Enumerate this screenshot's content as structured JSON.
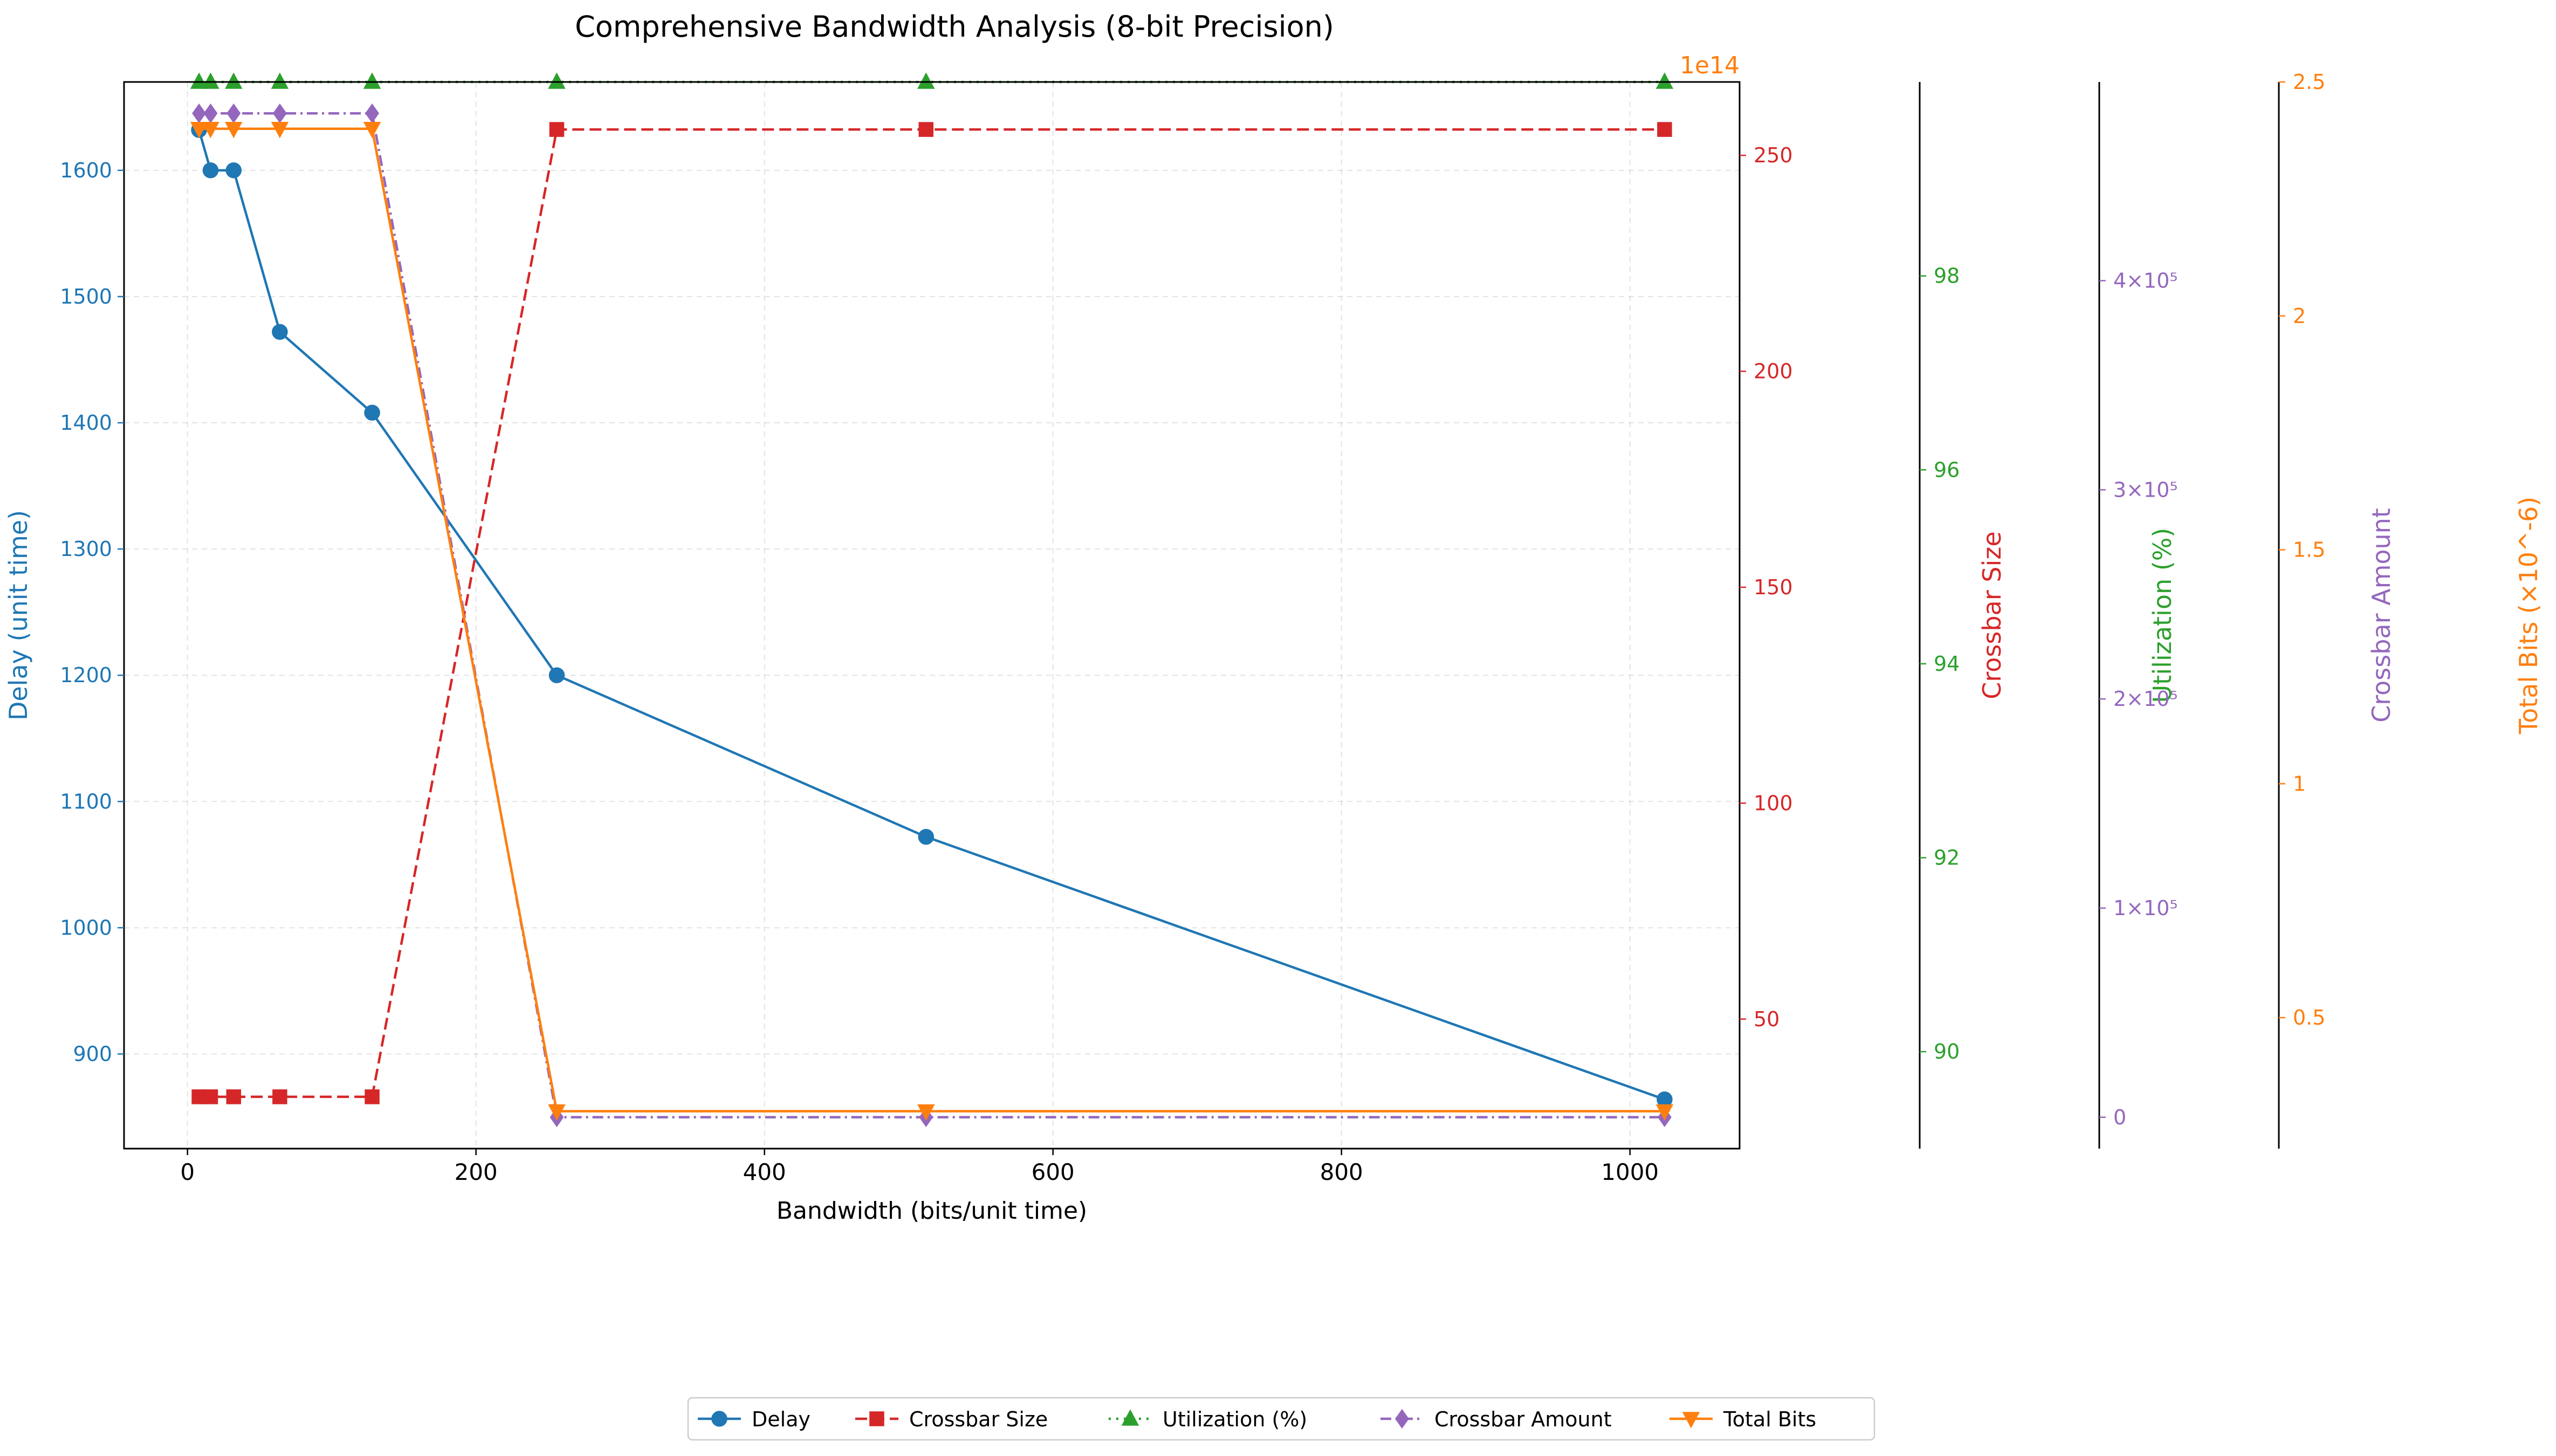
{
  "chart_data": {
    "type": "line",
    "title": "Comprehensive Bandwidth Analysis (8-bit Precision)",
    "xlabel": "Bandwidth (bits/unit time)",
    "x": [
      8,
      16,
      32,
      64,
      128,
      256,
      512,
      1024
    ],
    "xlim": [
      -44,
      1076
    ],
    "xticks": [
      0,
      200,
      400,
      600,
      800,
      1000
    ],
    "grid": true,
    "legend_position": "bottom-center",
    "axes": [
      {
        "id": "delay",
        "side": "left",
        "label": "Delay (unit time)",
        "color": "#1f77b4",
        "ylim": [
          825.0,
          1670.0
        ],
        "ticks": [
          900,
          1000,
          1100,
          1200,
          1300,
          1400,
          1500,
          1600
        ]
      },
      {
        "id": "crossbar_size",
        "side": "right",
        "label": "Crossbar Size",
        "color": "#d62728",
        "ylim": [
          20.0,
          267.0
        ],
        "ticks": [
          50,
          100,
          150,
          200,
          250
        ]
      },
      {
        "id": "utilization",
        "side": "right",
        "label": "Utilization (%)",
        "color": "#2ca02c",
        "ylim": [
          89.0,
          100.0
        ],
        "ticks": [
          90,
          92,
          94,
          96,
          98
        ]
      },
      {
        "id": "crossbar_amount",
        "side": "right",
        "label": "Crossbar Amount",
        "color": "#9467bd",
        "ylim": [
          -15000,
          495000
        ],
        "ticks": [
          0,
          100000,
          200000,
          300000,
          400000
        ],
        "tick_labels": [
          "0",
          "1×10⁵",
          "2×10⁵",
          "3×10⁵",
          "4×10⁵"
        ]
      },
      {
        "id": "total_bits",
        "side": "right",
        "label": "Total Bits (×10^-6)",
        "color": "#ff7f0e",
        "ylim": [
          0.22,
          2.5
        ],
        "ticks": [
          0.5,
          1.0,
          1.5,
          2.0,
          2.5
        ],
        "offset_text": "1e14"
      }
    ],
    "series": [
      {
        "name": "Delay",
        "axis": "delay",
        "color": "#1f77b4",
        "marker": "circle",
        "dash": "solid",
        "values": [
          1632,
          1600,
          1600,
          1472,
          1408,
          1200,
          1072,
          864
        ]
      },
      {
        "name": "Crossbar Size",
        "axis": "crossbar_size",
        "color": "#d62728",
        "marker": "square",
        "dash": "dashed",
        "values": [
          32,
          32,
          32,
          32,
          32,
          256,
          256,
          256
        ]
      },
      {
        "name": "Utilization (%)",
        "axis": "utilization",
        "color": "#2ca02c",
        "marker": "triangle-up",
        "dash": "dotted",
        "values": [
          100,
          100,
          100,
          100,
          100,
          100,
          100,
          100
        ]
      },
      {
        "name": "Crossbar Amount",
        "axis": "crossbar_amount",
        "color": "#9467bd",
        "marker": "diamond",
        "dash": "dashdot",
        "values": [
          480000,
          480000,
          480000,
          480000,
          480000,
          0,
          0,
          0
        ]
      },
      {
        "name": "Total Bits",
        "axis": "total_bits",
        "color": "#ff7f0e",
        "marker": "triangle-down",
        "dash": "solid",
        "values": [
          2.4,
          2.4,
          2.4,
          2.4,
          2.4,
          0.3,
          0.3,
          0.3
        ]
      }
    ]
  }
}
